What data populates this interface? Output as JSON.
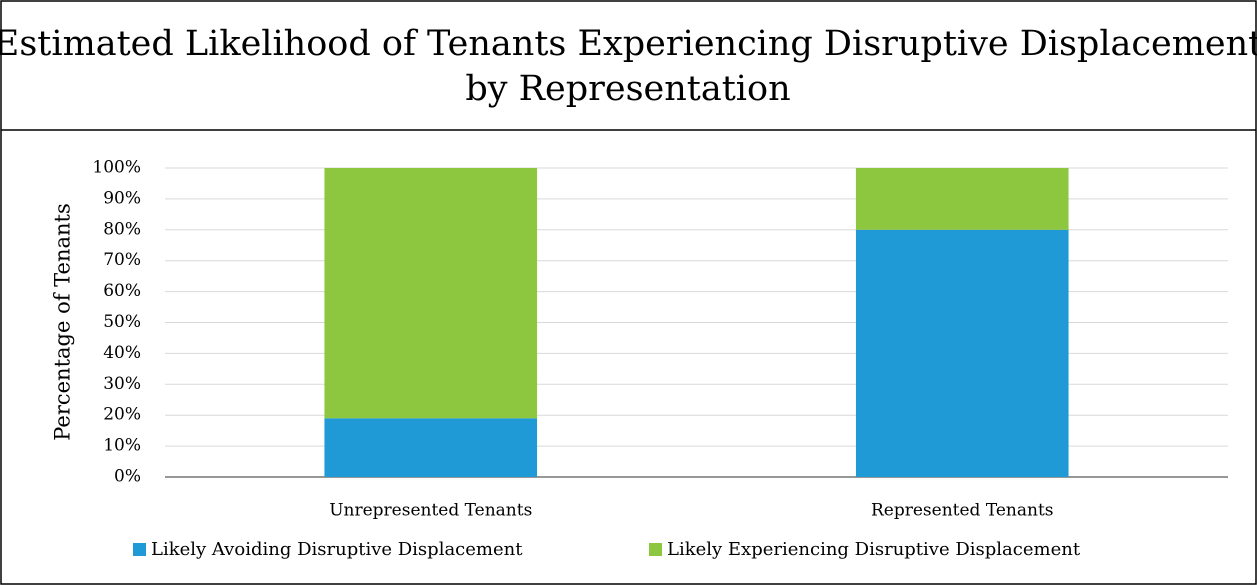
{
  "chart_data": {
    "type": "stacked_bar",
    "title": "Estimated Likelihood of Tenants Experiencing Disruptive Displacement by Representation",
    "ylabel": "Percentage of Tenants",
    "categories": [
      "Unrepresented Tenants",
      "Represented Tenants"
    ],
    "series": [
      {
        "name": "Likely Avoiding Disruptive Displacement",
        "color": "#1f9ad6",
        "values": [
          19,
          80
        ]
      },
      {
        "name": "Likely Experiencing Disruptive Displacement",
        "color": "#8dc63f",
        "values": [
          81,
          20
        ]
      }
    ],
    "ylim": [
      0,
      100
    ],
    "yticks": [
      {
        "value": 0,
        "label": "0%"
      },
      {
        "value": 10,
        "label": "10%"
      },
      {
        "value": 20,
        "label": "20%"
      },
      {
        "value": 30,
        "label": "30%"
      },
      {
        "value": 40,
        "label": "40%"
      },
      {
        "value": 50,
        "label": "50%"
      },
      {
        "value": 60,
        "label": "60%"
      },
      {
        "value": 70,
        "label": "70%"
      },
      {
        "value": 80,
        "label": "80%"
      },
      {
        "value": 90,
        "label": "90%"
      },
      {
        "value": 100,
        "label": "100%"
      }
    ],
    "grid": true,
    "legend": "bottom"
  }
}
